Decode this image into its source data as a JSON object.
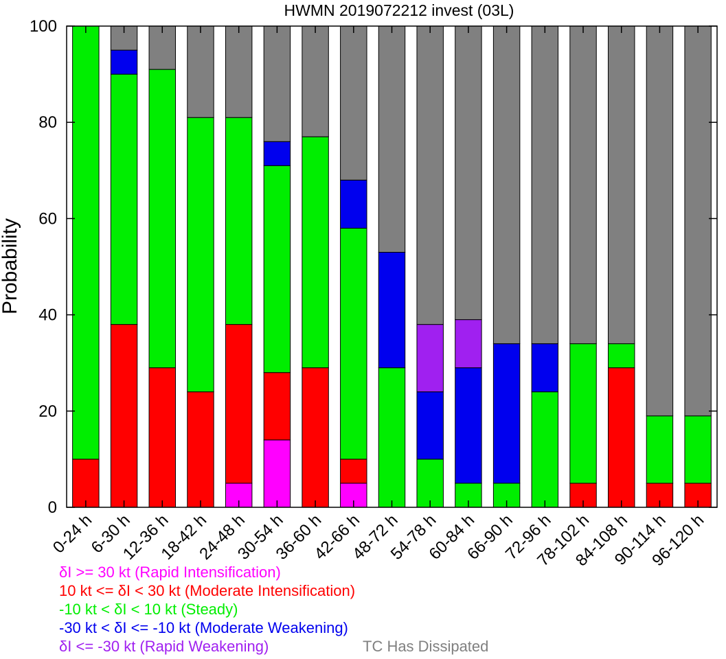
{
  "chart_data": {
    "type": "bar",
    "stacked": true,
    "title": "HWMN 2019072212 invest (03L)",
    "xlabel": "",
    "ylabel": "Probability",
    "ylim": [
      0,
      100
    ],
    "yticks": [
      0,
      20,
      40,
      60,
      80,
      100
    ],
    "categories": [
      "0-24 h",
      "6-30 h",
      "12-36 h",
      "18-42 h",
      "24-48 h",
      "30-54 h",
      "36-60 h",
      "42-66 h",
      "48-72 h",
      "54-78 h",
      "60-84 h",
      "66-90 h",
      "72-96 h",
      "78-102 h",
      "84-108 h",
      "90-114 h",
      "96-120 h"
    ],
    "series": [
      {
        "name": "δI >= 30 kt (Rapid Intensification)",
        "color": "#ff00ff",
        "values": [
          0,
          0,
          0,
          0,
          5,
          14,
          0,
          5,
          0,
          0,
          0,
          0,
          0,
          0,
          0,
          0,
          0
        ]
      },
      {
        "name": "10 kt <= δI < 30 kt (Moderate Intensification)",
        "color": "#ff0000",
        "values": [
          10,
          38,
          29,
          24,
          33,
          14,
          29,
          5,
          0,
          0,
          0,
          0,
          0,
          5,
          29,
          5,
          5
        ]
      },
      {
        "name": "-10 kt < δI < 10 kt (Steady)",
        "color": "#00ee00",
        "values": [
          90,
          52,
          62,
          57,
          43,
          43,
          48,
          48,
          29,
          10,
          5,
          5,
          24,
          29,
          5,
          14,
          14
        ]
      },
      {
        "name": "-30 kt < δI <= -10 kt (Moderate Weakening)",
        "color": "#0000ee",
        "values": [
          0,
          5,
          0,
          0,
          0,
          5,
          0,
          10,
          24,
          14,
          24,
          29,
          10,
          0,
          0,
          0,
          0
        ]
      },
      {
        "name": "δI <= -30 kt (Rapid Weakening)",
        "color": "#a020f0",
        "values": [
          0,
          0,
          0,
          0,
          0,
          0,
          0,
          0,
          0,
          14,
          10,
          0,
          0,
          0,
          0,
          0,
          0
        ]
      },
      {
        "name": "TC Has Dissipated",
        "color": "#808080",
        "values": [
          0,
          5,
          9,
          19,
          19,
          24,
          23,
          32,
          47,
          62,
          61,
          66,
          66,
          66,
          66,
          81,
          81
        ]
      }
    ],
    "legend": [
      {
        "text": "δI >= 30 kt (Rapid Intensification)",
        "color": "#ff00ff"
      },
      {
        "text": "10 kt <= δI < 30 kt (Moderate Intensification)",
        "color": "#ff0000"
      },
      {
        "text": "-10 kt < δI < 10 kt (Steady)",
        "color": "#00ee00"
      },
      {
        "text": "-30 kt < δI <= -10 kt (Moderate Weakening)",
        "color": "#0000ee"
      },
      {
        "text": "δI <= -30 kt (Rapid Weakening)",
        "color": "#a020f0"
      },
      {
        "text": "TC Has Dissipated",
        "color": "#808080"
      }
    ],
    "legend_position": "bottom-left",
    "grid": false
  }
}
